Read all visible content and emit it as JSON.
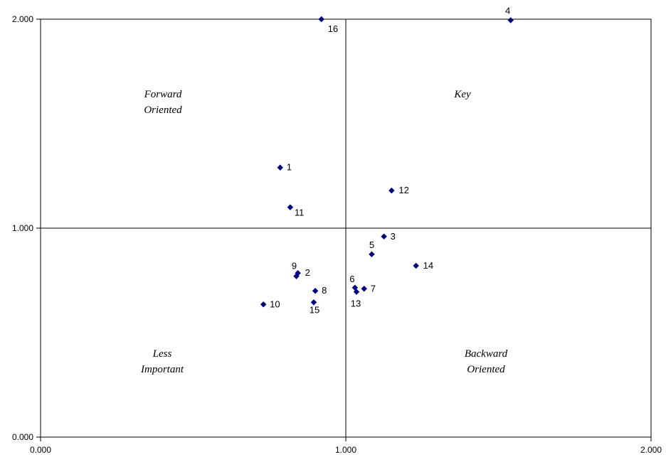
{
  "chart_data": {
    "type": "scatter",
    "title": "",
    "xlabel": "",
    "ylabel": "",
    "xlim": [
      0,
      2
    ],
    "ylim": [
      0,
      2
    ],
    "grid": false,
    "reference_lines": {
      "x": 1,
      "y": 1
    },
    "x_ticks": [
      "0.000",
      "1.000",
      "2.000"
    ],
    "y_ticks": [
      "0.000",
      "1.000",
      "2.000"
    ],
    "marker_color": "#000080",
    "quadrant_labels": {
      "top_left": [
        "Forward",
        "Oriented"
      ],
      "top_right": [
        "Key"
      ],
      "bottom_left": [
        "Less",
        "Important"
      ],
      "bottom_right": [
        "Backward",
        "Oriented"
      ]
    },
    "points": [
      {
        "label": "1",
        "x": 0.785,
        "y": 1.29
      },
      {
        "label": "2",
        "x": 0.843,
        "y": 0.785
      },
      {
        "label": "3",
        "x": 1.125,
        "y": 0.96
      },
      {
        "label": "4",
        "x": 1.54,
        "y": 1.995
      },
      {
        "label": "5",
        "x": 1.085,
        "y": 0.875
      },
      {
        "label": "6",
        "x": 1.03,
        "y": 0.715
      },
      {
        "label": "7",
        "x": 1.06,
        "y": 0.71
      },
      {
        "label": "8",
        "x": 0.9,
        "y": 0.7
      },
      {
        "label": "9",
        "x": 0.838,
        "y": 0.77
      },
      {
        "label": "10",
        "x": 0.73,
        "y": 0.635
      },
      {
        "label": "11",
        "x": 0.818,
        "y": 1.1
      },
      {
        "label": "12",
        "x": 1.15,
        "y": 1.18
      },
      {
        "label": "13",
        "x": 1.035,
        "y": 0.695
      },
      {
        "label": "14",
        "x": 1.23,
        "y": 0.82
      },
      {
        "label": "15",
        "x": 0.895,
        "y": 0.645
      },
      {
        "label": "16",
        "x": 0.92,
        "y": 2.0
      }
    ]
  }
}
